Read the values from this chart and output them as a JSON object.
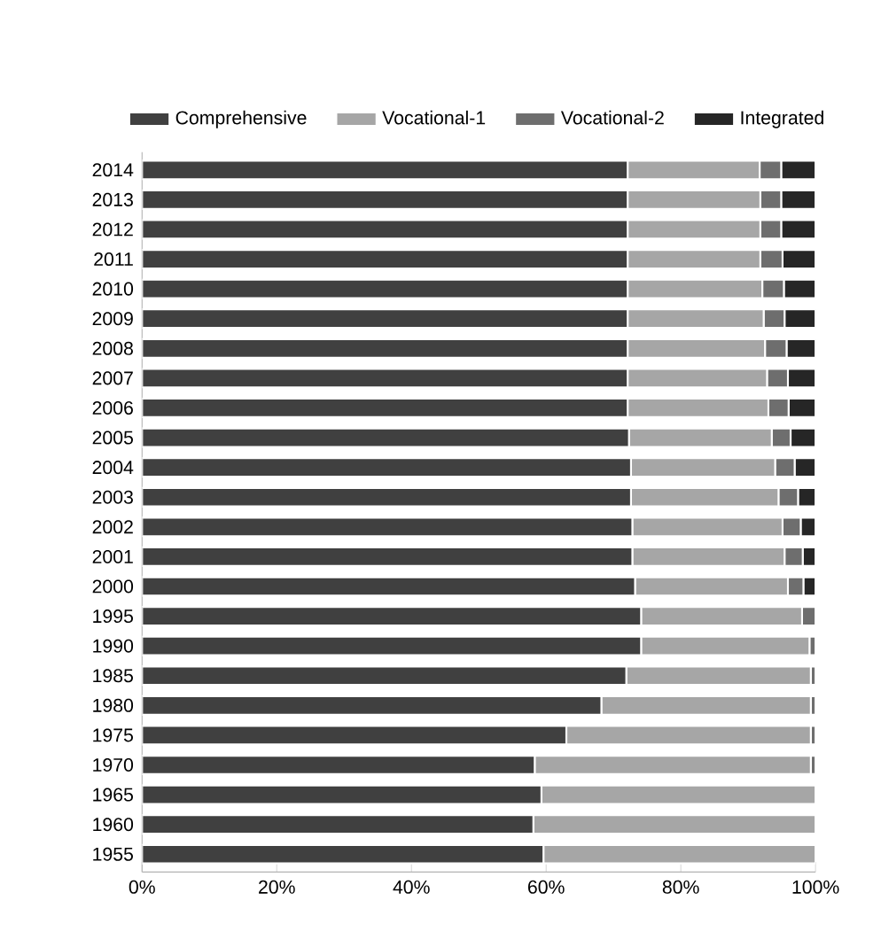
{
  "chart_data": {
    "type": "bar",
    "orientation": "horizontal",
    "stacked": true,
    "legend": "top",
    "categories": [
      "2014",
      "2013",
      "2012",
      "2011",
      "2010",
      "2009",
      "2008",
      "2007",
      "2006",
      "2005",
      "2004",
      "2003",
      "2002",
      "2001",
      "2000",
      "1995",
      "1990",
      "1985",
      "1980",
      "1975",
      "1970",
      "1965",
      "1960",
      "1955"
    ],
    "series": [
      {
        "name": "Comprehensive",
        "color": "#404040",
        "values": [
          72.1,
          72.1,
          72.1,
          72.1,
          72.1,
          72.1,
          72.1,
          72.1,
          72.1,
          72.3,
          72.6,
          72.6,
          72.8,
          72.8,
          73.2,
          74.1,
          74.1,
          71.9,
          68.2,
          63.0,
          58.3,
          59.3,
          58.1,
          59.6
        ]
      },
      {
        "name": "Vocational-1",
        "color": "#a6a6a6",
        "values": [
          19.6,
          19.7,
          19.7,
          19.7,
          20.0,
          20.2,
          20.4,
          20.7,
          20.9,
          21.2,
          21.4,
          21.9,
          22.3,
          22.6,
          22.7,
          23.9,
          25.0,
          27.4,
          31.1,
          36.3,
          41.0,
          40.7,
          41.9,
          40.4
        ]
      },
      {
        "name": "Vocational-2",
        "color": "#6e6e6e",
        "values": [
          3.2,
          3.1,
          3.1,
          3.3,
          3.2,
          3.1,
          3.2,
          3.1,
          3.0,
          2.8,
          2.9,
          2.9,
          2.7,
          2.7,
          2.3,
          2.0,
          0.9,
          0.7,
          0.7,
          0.7,
          0.7,
          0,
          0,
          0
        ]
      },
      {
        "name": "Integrated",
        "color": "#262626",
        "values": [
          5.1,
          5.1,
          5.1,
          4.9,
          4.7,
          4.6,
          4.3,
          4.1,
          4.0,
          3.7,
          3.1,
          2.6,
          2.2,
          1.9,
          1.8,
          0,
          0,
          0,
          0,
          0,
          0,
          0,
          0,
          0
        ]
      }
    ],
    "xlim": [
      0,
      100
    ],
    "xticks": [
      {
        "value": 0,
        "label": "0%"
      },
      {
        "value": 20,
        "label": "20%"
      },
      {
        "value": 40,
        "label": "40%"
      },
      {
        "value": 60,
        "label": "60%"
      },
      {
        "value": 80,
        "label": "80%"
      },
      {
        "value": 100,
        "label": "100%"
      }
    ]
  }
}
